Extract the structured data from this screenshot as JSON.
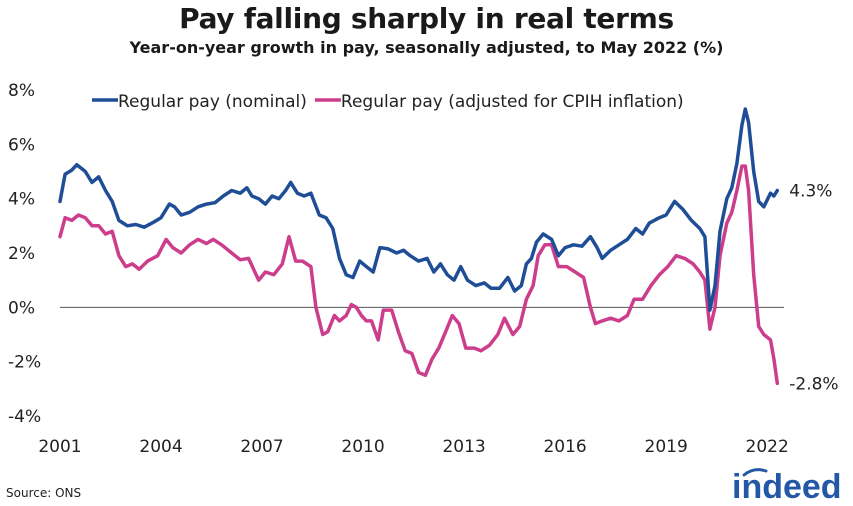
{
  "title": "Pay falling sharply in real terms",
  "subtitle": "Year-on-year growth in pay, seasonally adjusted, to May 2022 (%)",
  "source": "Source: ONS",
  "logo": {
    "text": "indeed"
  },
  "colors": {
    "nominal": "#1f4e96",
    "real": "#cc3d8c",
    "axis": "#555555",
    "logo": "#2557a7"
  },
  "chart_data": {
    "type": "line",
    "title": "Pay falling sharply in real terms",
    "xlabel": "",
    "ylabel": "",
    "xlim": [
      2001.0,
      2022.5
    ],
    "ylim": [
      -4,
      8
    ],
    "xticks": [
      2001,
      2004,
      2007,
      2010,
      2013,
      2016,
      2019,
      2022
    ],
    "xtick_labels": [
      "2001",
      "2004",
      "2007",
      "2010",
      "2013",
      "2016",
      "2019",
      "2022"
    ],
    "yticks": [
      -4,
      -2,
      0,
      2,
      4,
      6,
      8
    ],
    "ytick_labels": [
      "-4%",
      "-2%",
      "0%",
      "2%",
      "4%",
      "6%",
      "8%"
    ],
    "legend_position": "top",
    "series": [
      {
        "name": "Regular pay (nominal)",
        "end_label": "4.3%",
        "points": [
          [
            2001.0,
            3.9
          ],
          [
            2001.15,
            4.9
          ],
          [
            2001.35,
            5.05
          ],
          [
            2001.5,
            5.25
          ],
          [
            2001.75,
            5.0
          ],
          [
            2001.95,
            4.6
          ],
          [
            2002.15,
            4.8
          ],
          [
            2002.35,
            4.3
          ],
          [
            2002.55,
            3.9
          ],
          [
            2002.75,
            3.2
          ],
          [
            2003.0,
            3.0
          ],
          [
            2003.25,
            3.05
          ],
          [
            2003.5,
            2.95
          ],
          [
            2003.8,
            3.15
          ],
          [
            2004.0,
            3.3
          ],
          [
            2004.25,
            3.8
          ],
          [
            2004.4,
            3.7
          ],
          [
            2004.6,
            3.4
          ],
          [
            2004.85,
            3.5
          ],
          [
            2005.1,
            3.7
          ],
          [
            2005.35,
            3.8
          ],
          [
            2005.6,
            3.85
          ],
          [
            2005.85,
            4.1
          ],
          [
            2006.1,
            4.3
          ],
          [
            2006.35,
            4.2
          ],
          [
            2006.55,
            4.4
          ],
          [
            2006.7,
            4.1
          ],
          [
            2006.9,
            4.0
          ],
          [
            2007.1,
            3.8
          ],
          [
            2007.3,
            4.1
          ],
          [
            2007.5,
            4.0
          ],
          [
            2007.7,
            4.3
          ],
          [
            2007.85,
            4.6
          ],
          [
            2008.05,
            4.2
          ],
          [
            2008.25,
            4.1
          ],
          [
            2008.45,
            4.2
          ],
          [
            2008.7,
            3.4
          ],
          [
            2008.9,
            3.3
          ],
          [
            2009.1,
            2.9
          ],
          [
            2009.3,
            1.8
          ],
          [
            2009.5,
            1.2
          ],
          [
            2009.7,
            1.1
          ],
          [
            2009.9,
            1.7
          ],
          [
            2010.1,
            1.5
          ],
          [
            2010.3,
            1.3
          ],
          [
            2010.5,
            2.2
          ],
          [
            2010.75,
            2.15
          ],
          [
            2011.0,
            2.0
          ],
          [
            2011.2,
            2.1
          ],
          [
            2011.4,
            1.9
          ],
          [
            2011.65,
            1.7
          ],
          [
            2011.9,
            1.8
          ],
          [
            2012.1,
            1.3
          ],
          [
            2012.3,
            1.6
          ],
          [
            2012.5,
            1.2
          ],
          [
            2012.7,
            1.0
          ],
          [
            2012.9,
            1.5
          ],
          [
            2013.1,
            1.0
          ],
          [
            2013.35,
            0.8
          ],
          [
            2013.6,
            0.9
          ],
          [
            2013.8,
            0.7
          ],
          [
            2014.05,
            0.7
          ],
          [
            2014.3,
            1.1
          ],
          [
            2014.5,
            0.6
          ],
          [
            2014.7,
            0.8
          ],
          [
            2014.85,
            1.6
          ],
          [
            2015.0,
            1.8
          ],
          [
            2015.15,
            2.4
          ],
          [
            2015.35,
            2.7
          ],
          [
            2015.6,
            2.5
          ],
          [
            2015.8,
            1.9
          ],
          [
            2016.0,
            2.2
          ],
          [
            2016.25,
            2.3
          ],
          [
            2016.5,
            2.25
          ],
          [
            2016.75,
            2.6
          ],
          [
            2016.95,
            2.2
          ],
          [
            2017.1,
            1.8
          ],
          [
            2017.35,
            2.1
          ],
          [
            2017.6,
            2.3
          ],
          [
            2017.85,
            2.5
          ],
          [
            2018.1,
            2.9
          ],
          [
            2018.3,
            2.7
          ],
          [
            2018.5,
            3.1
          ],
          [
            2018.8,
            3.3
          ],
          [
            2019.0,
            3.4
          ],
          [
            2019.25,
            3.9
          ],
          [
            2019.5,
            3.6
          ],
          [
            2019.75,
            3.2
          ],
          [
            2020.0,
            2.9
          ],
          [
            2020.15,
            2.6
          ],
          [
            2020.3,
            -0.1
          ],
          [
            2020.45,
            0.8
          ],
          [
            2020.6,
            2.8
          ],
          [
            2020.8,
            4.0
          ],
          [
            2020.95,
            4.4
          ],
          [
            2021.1,
            5.3
          ],
          [
            2021.25,
            6.7
          ],
          [
            2021.35,
            7.3
          ],
          [
            2021.45,
            6.8
          ],
          [
            2021.6,
            5.0
          ],
          [
            2021.75,
            3.9
          ],
          [
            2021.9,
            3.7
          ],
          [
            2022.1,
            4.2
          ],
          [
            2022.2,
            4.1
          ],
          [
            2022.3,
            4.3
          ]
        ]
      },
      {
        "name": "Regular pay (adjusted for CPIH inflation)",
        "end_label": "-2.8%",
        "points": [
          [
            2001.0,
            2.6
          ],
          [
            2001.15,
            3.3
          ],
          [
            2001.35,
            3.2
          ],
          [
            2001.55,
            3.4
          ],
          [
            2001.75,
            3.3
          ],
          [
            2001.95,
            3.0
          ],
          [
            2002.15,
            3.0
          ],
          [
            2002.35,
            2.7
          ],
          [
            2002.55,
            2.8
          ],
          [
            2002.75,
            1.9
          ],
          [
            2002.95,
            1.5
          ],
          [
            2003.15,
            1.6
          ],
          [
            2003.35,
            1.4
          ],
          [
            2003.6,
            1.7
          ],
          [
            2003.9,
            1.9
          ],
          [
            2004.15,
            2.5
          ],
          [
            2004.35,
            2.2
          ],
          [
            2004.6,
            2.0
          ],
          [
            2004.85,
            2.3
          ],
          [
            2005.1,
            2.5
          ],
          [
            2005.35,
            2.35
          ],
          [
            2005.55,
            2.5
          ],
          [
            2005.8,
            2.3
          ],
          [
            2006.1,
            2.0
          ],
          [
            2006.35,
            1.75
          ],
          [
            2006.6,
            1.8
          ],
          [
            2006.75,
            1.4
          ],
          [
            2006.9,
            1.0
          ],
          [
            2007.1,
            1.3
          ],
          [
            2007.35,
            1.2
          ],
          [
            2007.6,
            1.6
          ],
          [
            2007.8,
            2.6
          ],
          [
            2008.0,
            1.7
          ],
          [
            2008.2,
            1.7
          ],
          [
            2008.45,
            1.5
          ],
          [
            2008.6,
            0.0
          ],
          [
            2008.8,
            -1.0
          ],
          [
            2008.95,
            -0.9
          ],
          [
            2009.15,
            -0.3
          ],
          [
            2009.3,
            -0.5
          ],
          [
            2009.5,
            -0.3
          ],
          [
            2009.65,
            0.1
          ],
          [
            2009.8,
            0.0
          ],
          [
            2009.95,
            -0.3
          ],
          [
            2010.1,
            -0.5
          ],
          [
            2010.25,
            -0.5
          ],
          [
            2010.45,
            -1.2
          ],
          [
            2010.6,
            -0.1
          ],
          [
            2010.85,
            -0.1
          ],
          [
            2011.05,
            -0.9
          ],
          [
            2011.25,
            -1.6
          ],
          [
            2011.45,
            -1.7
          ],
          [
            2011.65,
            -2.4
          ],
          [
            2011.85,
            -2.5
          ],
          [
            2012.05,
            -1.9
          ],
          [
            2012.25,
            -1.5
          ],
          [
            2012.45,
            -0.9
          ],
          [
            2012.65,
            -0.3
          ],
          [
            2012.85,
            -0.6
          ],
          [
            2013.05,
            -1.5
          ],
          [
            2013.3,
            -1.5
          ],
          [
            2013.5,
            -1.6
          ],
          [
            2013.75,
            -1.4
          ],
          [
            2014.0,
            -1.0
          ],
          [
            2014.2,
            -0.4
          ],
          [
            2014.45,
            -1.0
          ],
          [
            2014.65,
            -0.7
          ],
          [
            2014.85,
            0.3
          ],
          [
            2015.05,
            0.8
          ],
          [
            2015.2,
            1.9
          ],
          [
            2015.4,
            2.3
          ],
          [
            2015.6,
            2.3
          ],
          [
            2015.8,
            1.5
          ],
          [
            2016.05,
            1.5
          ],
          [
            2016.3,
            1.3
          ],
          [
            2016.55,
            1.1
          ],
          [
            2016.75,
            0.0
          ],
          [
            2016.9,
            -0.6
          ],
          [
            2017.1,
            -0.5
          ],
          [
            2017.35,
            -0.4
          ],
          [
            2017.6,
            -0.5
          ],
          [
            2017.85,
            -0.3
          ],
          [
            2018.05,
            0.3
          ],
          [
            2018.3,
            0.3
          ],
          [
            2018.55,
            0.8
          ],
          [
            2018.8,
            1.2
          ],
          [
            2019.05,
            1.5
          ],
          [
            2019.3,
            1.9
          ],
          [
            2019.55,
            1.8
          ],
          [
            2019.8,
            1.6
          ],
          [
            2020.0,
            1.3
          ],
          [
            2020.15,
            1.0
          ],
          [
            2020.3,
            -0.8
          ],
          [
            2020.45,
            0.0
          ],
          [
            2020.6,
            1.9
          ],
          [
            2020.8,
            3.1
          ],
          [
            2020.95,
            3.5
          ],
          [
            2021.1,
            4.3
          ],
          [
            2021.25,
            5.2
          ],
          [
            2021.35,
            5.2
          ],
          [
            2021.45,
            4.3
          ],
          [
            2021.6,
            1.2
          ],
          [
            2021.75,
            -0.7
          ],
          [
            2021.9,
            -1.0
          ],
          [
            2022.1,
            -1.2
          ],
          [
            2022.2,
            -1.9
          ],
          [
            2022.3,
            -2.8
          ]
        ]
      }
    ]
  }
}
